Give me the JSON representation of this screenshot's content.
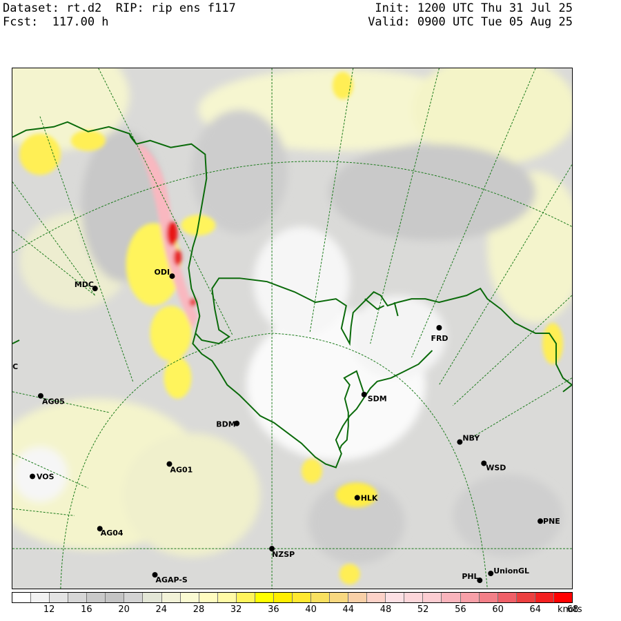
{
  "header": {
    "dataset_line": "Dataset: rt.d2  RIP: rip ens f117",
    "fcst_line": "Fcst:  117.00 h",
    "init_line": "Init: 1200 UTC Thu 31 Jul 25",
    "valid_line": "Valid: 0900 UTC Tue 05 Aug 25"
  },
  "stations": [
    {
      "name": "ODI"
    },
    {
      "name": "MDC"
    },
    {
      "name": "FRD"
    },
    {
      "name": "C"
    },
    {
      "name": "AG05"
    },
    {
      "name": "SDM"
    },
    {
      "name": "BDM"
    },
    {
      "name": "NBY"
    },
    {
      "name": "AG01"
    },
    {
      "name": "WSD"
    },
    {
      "name": "VOS"
    },
    {
      "name": "HLK"
    },
    {
      "name": "PNE"
    },
    {
      "name": "AG04"
    },
    {
      "name": "NZSP"
    },
    {
      "name": "AGAP-S"
    },
    {
      "name": "PHL"
    },
    {
      "name": "UnionGL"
    }
  ],
  "legend": {
    "colors": [
      "#ffffff",
      "#f2f2f2",
      "#e3e3e3",
      "#d6d6d6",
      "#c9c9c9",
      "#c4c4c4",
      "#d3d3d3",
      "#e3e6d6",
      "#f2f2d8",
      "#fafad2",
      "#fffcc0",
      "#fffaa6",
      "#fff45c",
      "#ffff00",
      "#ffee00",
      "#ffe830",
      "#f8e060",
      "#f8d880",
      "#f8d0a8",
      "#fcd2c8",
      "#fce0e4",
      "#fcd6da",
      "#fccdd2",
      "#f9b4bc",
      "#f7a0a8",
      "#f38088",
      "#f06068",
      "#ec4040",
      "#f42020",
      "#ff0000"
    ],
    "tick_labels": [
      "12",
      "16",
      "20",
      "24",
      "28",
      "32",
      "36",
      "40",
      "44",
      "48",
      "52",
      "56",
      "60",
      "64",
      "68"
    ],
    "units": "knots"
  }
}
